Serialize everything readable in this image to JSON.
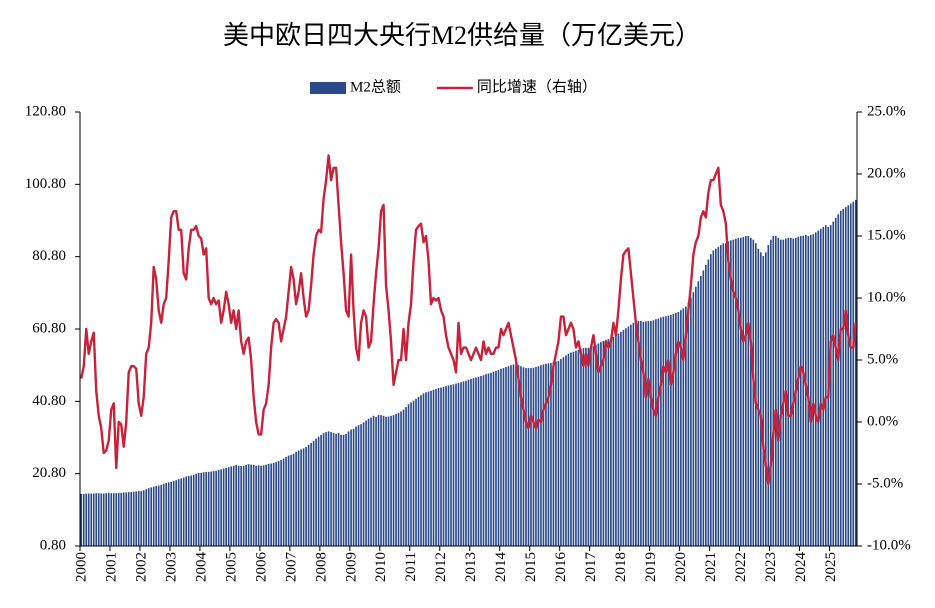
{
  "chart_data": {
    "type": "bar_line",
    "title": "美中欧日四大央行M2供给量（万亿美元）",
    "categories": [
      "2000",
      null,
      null,
      null,
      null,
      null,
      null,
      null,
      null,
      null,
      null,
      null,
      "2001",
      null,
      null,
      null,
      null,
      null,
      null,
      null,
      null,
      null,
      null,
      null,
      "2002",
      null,
      null,
      null,
      null,
      null,
      null,
      null,
      null,
      null,
      null,
      null,
      "2003",
      null,
      null,
      null,
      null,
      null,
      null,
      null,
      null,
      null,
      null,
      null,
      "2004",
      null,
      null,
      null,
      null,
      null,
      null,
      null,
      null,
      null,
      null,
      null,
      "2005",
      null,
      null,
      null,
      null,
      null,
      null,
      null,
      null,
      null,
      null,
      null,
      "2006",
      null,
      null,
      null,
      null,
      null,
      null,
      null,
      null,
      null,
      null,
      null,
      "2007",
      null,
      null,
      null,
      null,
      null,
      null,
      null,
      null,
      null,
      null,
      null,
      "2008",
      null,
      null,
      null,
      null,
      null,
      null,
      null,
      null,
      null,
      null,
      null,
      "2009",
      null,
      null,
      null,
      null,
      null,
      null,
      null,
      null,
      null,
      null,
      null,
      "2010",
      null,
      null,
      null,
      null,
      null,
      null,
      null,
      null,
      null,
      null,
      null,
      "2011",
      null,
      null,
      null,
      null,
      null,
      null,
      null,
      null,
      null,
      null,
      null,
      "2012",
      null,
      null,
      null,
      null,
      null,
      null,
      null,
      null,
      null,
      null,
      null,
      "2013",
      null,
      null,
      null,
      null,
      null,
      null,
      null,
      null,
      null,
      null,
      null,
      "2014",
      null,
      null,
      null,
      null,
      null,
      null,
      null,
      null,
      null,
      null,
      null,
      "2015",
      null,
      null,
      null,
      null,
      null,
      null,
      null,
      null,
      null,
      null,
      null,
      "2016",
      null,
      null,
      null,
      null,
      null,
      null,
      null,
      null,
      null,
      null,
      null,
      "2017",
      null,
      null,
      null,
      null,
      null,
      null,
      null,
      null,
      null,
      null,
      null,
      "2018",
      null,
      null,
      null,
      null,
      null,
      null,
      null,
      null,
      null,
      null,
      null,
      "2019",
      null,
      null,
      null,
      null,
      null,
      null,
      null,
      null,
      null,
      null,
      null,
      "2020",
      null,
      null,
      null,
      null,
      null,
      null,
      null,
      null,
      null,
      null,
      null,
      "2021",
      null,
      null,
      null,
      null,
      null,
      null,
      null,
      null,
      null,
      null,
      null,
      "2022",
      null,
      null,
      null,
      null,
      null,
      null,
      null,
      null,
      null,
      null,
      null,
      "2023",
      null,
      null,
      null,
      null,
      null,
      null,
      null,
      null,
      null,
      null,
      null,
      "2024",
      null,
      null,
      null,
      null,
      null,
      null,
      null,
      null,
      null,
      null,
      null,
      "2025",
      null,
      null,
      null,
      null,
      null,
      null,
      null,
      null,
      null,
      null
    ],
    "series": [
      {
        "name": "M2总额",
        "type": "bar",
        "color": "#2b4a8b",
        "values": [
          15.2,
          15.2,
          15.3,
          15.3,
          15.3,
          15.3,
          15.4,
          15.4,
          15.3,
          15.3,
          15.4,
          15.5,
          15.4,
          15.4,
          15.4,
          15.5,
          15.5,
          15.6,
          15.6,
          15.7,
          15.7,
          15.8,
          15.9,
          16.0,
          16.0,
          16.2,
          16.5,
          16.8,
          17.0,
          17.2,
          17.4,
          17.5,
          17.7,
          18.0,
          18.2,
          18.4,
          18.5,
          18.8,
          19.0,
          19.3,
          19.5,
          19.7,
          20.0,
          20.2,
          20.3,
          20.5,
          20.8,
          21.0,
          21.0,
          21.2,
          21.3,
          21.3,
          21.4,
          21.5,
          21.6,
          21.8,
          22.0,
          22.2,
          22.4,
          22.6,
          22.8,
          23.0,
          23.2,
          23.0,
          22.9,
          23.0,
          23.2,
          23.4,
          23.3,
          23.2,
          23.0,
          23.1,
          23.0,
          23.1,
          23.3,
          23.5,
          23.6,
          23.8,
          24.0,
          24.3,
          24.6,
          25.0,
          25.4,
          25.8,
          26.0,
          26.3,
          26.8,
          27.2,
          27.5,
          27.8,
          28.2,
          28.8,
          29.3,
          29.8,
          30.5,
          31.0,
          31.5,
          32.0,
          32.3,
          32.5,
          32.3,
          32.0,
          31.8,
          32.0,
          31.5,
          31.5,
          31.8,
          32.5,
          33.0,
          33.2,
          33.8,
          34.2,
          34.5,
          35.0,
          35.5,
          36.0,
          36.3,
          36.8,
          36.5,
          37.0,
          37.0,
          36.8,
          36.5,
          36.6,
          36.8,
          37.0,
          37.3,
          37.6,
          38.0,
          38.5,
          39.2,
          40.0,
          40.5,
          41.0,
          41.5,
          42.0,
          42.5,
          43.0,
          43.3,
          43.5,
          43.7,
          44.0,
          44.2,
          44.5,
          44.6,
          44.8,
          45.0,
          45.2,
          45.3,
          45.5,
          45.7,
          45.9,
          46.1,
          46.3,
          46.5,
          46.8,
          47.0,
          47.2,
          47.4,
          47.6,
          47.8,
          48.0,
          48.3,
          48.5,
          48.7,
          49.0,
          49.2,
          49.5,
          49.8,
          50.0,
          50.3,
          50.5,
          50.8,
          51.0,
          51.0,
          50.8,
          50.5,
          50.2,
          50.0,
          50.0,
          50.0,
          50.1,
          50.3,
          50.5,
          50.8,
          51.0,
          51.2,
          51.3,
          51.4,
          51.6,
          51.8,
          52.0,
          52.5,
          53.0,
          53.5,
          54.0,
          54.3,
          54.5,
          54.8,
          55.0,
          55.2,
          55.5,
          55.6,
          55.6,
          55.8,
          56.0,
          56.3,
          56.8,
          57.2,
          57.5,
          57.8,
          58.0,
          58.3,
          58.6,
          59.0,
          59.5,
          60.0,
          60.5,
          61.0,
          61.5,
          62.0,
          62.5,
          62.8,
          63.0,
          63.0,
          62.8,
          62.9,
          63.0,
          63.0,
          63.2,
          63.5,
          63.7,
          64.0,
          64.2,
          64.3,
          64.5,
          64.7,
          65.0,
          65.2,
          65.5,
          66.0,
          66.5,
          67.0,
          68.0,
          69.5,
          71.0,
          72.5,
          74.0,
          75.5,
          77.0,
          78.5,
          80.0,
          81.5,
          82.5,
          83.0,
          83.5,
          84.0,
          84.5,
          84.5,
          85.0,
          85.3,
          85.5,
          85.7,
          86.0,
          86.0,
          86.2,
          86.5,
          86.5,
          86.0,
          85.5,
          84.5,
          83.0,
          82.0,
          81.0,
          82.0,
          84.0,
          85.5,
          86.5,
          86.5,
          86.0,
          85.5,
          85.5,
          85.8,
          86.0,
          86.0,
          85.8,
          86.0,
          86.3,
          86.5,
          86.6,
          86.8,
          86.5,
          86.8,
          87.0,
          87.5,
          88.0,
          88.5,
          89.0,
          89.5,
          89.0,
          89.5,
          90.5,
          91.5,
          92.5,
          93.5,
          94.0,
          94.5,
          95.0,
          95.5,
          96.0,
          96.5
        ]
      },
      {
        "name": "同比增速（右轴）",
        "type": "line",
        "axis": "y2",
        "color": "#c8223a",
        "values": [
          3.5,
          4.5,
          7.5,
          5.5,
          6.5,
          7.2,
          2.5,
          0.5,
          -0.5,
          -2.5,
          -2.3,
          -1.5,
          1.0,
          1.5,
          -3.7,
          0.0,
          -0.2,
          -2.0,
          0.0,
          4.0,
          4.5,
          4.5,
          4.3,
          1.5,
          0.5,
          2.0,
          5.5,
          6.0,
          8.0,
          12.5,
          11.5,
          9.0,
          8.0,
          9.5,
          10.0,
          13.0,
          16.5,
          17.0,
          17.0,
          15.5,
          15.5,
          12.0,
          11.5,
          14.0,
          15.5,
          15.5,
          15.8,
          15.0,
          14.8,
          13.5,
          14.0,
          10.0,
          9.5,
          10.0,
          9.5,
          9.8,
          8.0,
          9.0,
          10.5,
          9.5,
          8.0,
          9.0,
          7.5,
          9.0,
          6.5,
          5.5,
          6.5,
          6.8,
          5.0,
          2.0,
          0.0,
          -1.0,
          -1.0,
          1.0,
          1.5,
          3.0,
          6.0,
          8.0,
          8.3,
          8.0,
          6.5,
          7.5,
          8.5,
          10.5,
          12.5,
          11.5,
          9.5,
          10.5,
          12.0,
          10.0,
          8.5,
          9.0,
          11.0,
          13.5,
          15.0,
          15.5,
          15.3,
          18.0,
          19.5,
          21.5,
          19.5,
          20.5,
          20.5,
          17.5,
          14.5,
          12.0,
          9.0,
          8.5,
          13.5,
          9.0,
          6.0,
          5.0,
          8.0,
          9.0,
          8.5,
          6.0,
          6.5,
          9.5,
          12.0,
          14.0,
          17.0,
          17.5,
          11.0,
          9.0,
          6.5,
          3.0,
          4.0,
          5.0,
          5.0,
          7.5,
          5.0,
          8.0,
          9.5,
          13.0,
          15.5,
          15.8,
          16.0,
          14.5,
          15.0,
          13.0,
          9.5,
          10.0,
          9.8,
          10.0,
          9.0,
          8.5,
          7.0,
          6.0,
          5.5,
          5.0,
          4.0,
          8.0,
          5.5,
          6.0,
          6.0,
          5.5,
          5.0,
          5.5,
          6.0,
          5.5,
          5.0,
          6.5,
          5.5,
          6.0,
          5.5,
          5.5,
          6.0,
          6.0,
          7.5,
          7.0,
          7.5,
          8.0,
          7.0,
          6.0,
          5.0,
          3.5,
          2.0,
          1.0,
          0.0,
          -0.5,
          0.5,
          0.0,
          -0.5,
          0.2,
          0.0,
          1.0,
          1.5,
          2.0,
          3.0,
          4.5,
          5.5,
          6.5,
          8.5,
          8.5,
          7.0,
          7.5,
          8.0,
          7.5,
          6.0,
          6.5,
          5.5,
          4.5,
          5.5,
          4.5,
          6.0,
          7.0,
          5.5,
          4.0,
          4.5,
          5.0,
          6.5,
          6.0,
          6.5,
          8.0,
          7.0,
          9.0,
          11.5,
          13.5,
          13.8,
          14.0,
          12.0,
          10.0,
          8.0,
          6.5,
          5.0,
          4.0,
          2.0,
          3.5,
          2.0,
          1.0,
          0.5,
          2.0,
          3.0,
          4.5,
          4.0,
          5.0,
          3.0,
          4.0,
          5.5,
          6.5,
          6.0,
          5.0,
          7.0,
          9.0,
          11.0,
          13.5,
          14.5,
          15.0,
          16.5,
          17.0,
          16.5,
          18.5,
          19.5,
          19.5,
          20.0,
          20.5,
          17.5,
          17.0,
          16.0,
          13.0,
          11.5,
          10.5,
          10.0,
          9.0,
          7.5,
          6.5,
          7.0,
          8.0,
          6.5,
          3.5,
          1.5,
          1.0,
          0.5,
          -2.0,
          -3.5,
          -5.0,
          -3.5,
          -1.0,
          1.0,
          -1.5,
          0.5,
          1.5,
          2.5,
          0.5,
          0.5,
          1.5,
          2.5,
          3.5,
          4.5,
          4.0,
          3.0,
          2.0,
          0.0,
          1.5,
          0.5,
          0.0,
          1.5,
          1.0,
          2.0,
          2.0,
          6.5,
          7.0,
          6.0,
          5.0,
          7.5,
          7.5,
          9.0,
          7.0,
          6.0,
          6.0,
          8.0
        ]
      }
    ],
    "ylim": [
      0.8,
      120.8
    ],
    "yticks": [
      {
        "value": 0.8,
        "label": "0.80"
      },
      {
        "value": 20.8,
        "label": "20.80"
      },
      {
        "value": 40.8,
        "label": "40.80"
      },
      {
        "value": 60.8,
        "label": "60.80"
      },
      {
        "value": 80.8,
        "label": "80.80"
      },
      {
        "value": 100.8,
        "label": "100.80"
      },
      {
        "value": 120.8,
        "label": "120.80"
      }
    ],
    "y2lim": [
      -10,
      25
    ],
    "y2ticks": [
      {
        "value": -10,
        "label": "-10.0%"
      },
      {
        "value": -5,
        "label": "-5.0%"
      },
      {
        "value": 0,
        "label": "0.0%"
      },
      {
        "value": 5,
        "label": "5.0%"
      },
      {
        "value": 10,
        "label": "10.0%"
      },
      {
        "value": 15,
        "label": "15.0%"
      },
      {
        "value": 20,
        "label": "20.0%"
      },
      {
        "value": 25,
        "label": "25.0%"
      }
    ],
    "legend": "top"
  }
}
